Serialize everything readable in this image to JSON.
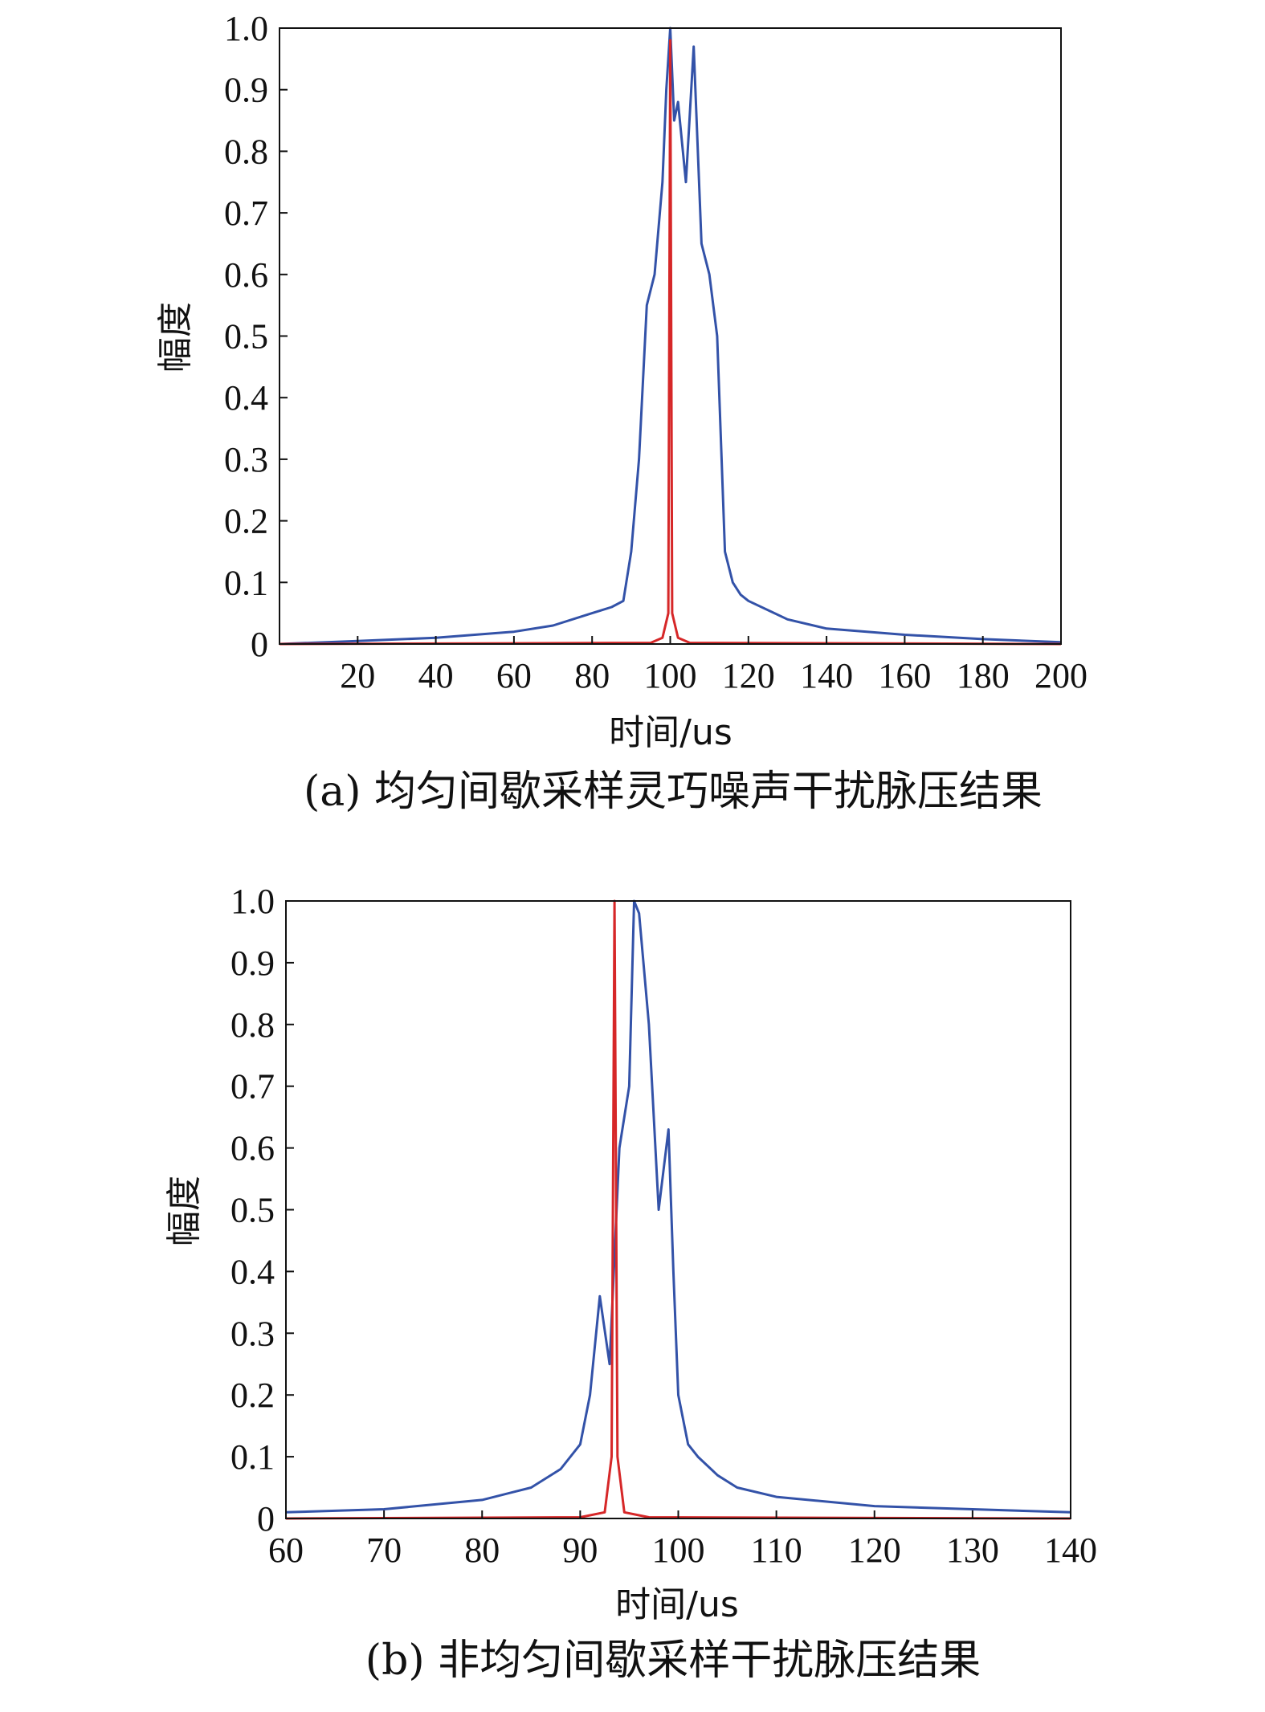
{
  "chart_data": [
    {
      "type": "line",
      "caption": "(a) 均匀间歇采样灵巧噪声干扰脉压结果",
      "xlabel": "时间/us",
      "ylabel": "幅度",
      "xlim": [
        0,
        200
      ],
      "ylim": [
        0,
        1.0
      ],
      "xticks": [
        20,
        40,
        60,
        80,
        100,
        120,
        140,
        160,
        180,
        200
      ],
      "xtick_labels": [
        "20",
        "40",
        "60",
        "80",
        "100",
        "120",
        "140",
        "160",
        "180",
        "200"
      ],
      "yticks": [
        0,
        0.1,
        0.2,
        0.3,
        0.4,
        0.5,
        0.6,
        0.7,
        0.8,
        0.9,
        1.0
      ],
      "ytick_labels": [
        "0",
        "0.1",
        "0.2",
        "0.3",
        "0.4",
        "0.5",
        "0.6",
        "0.7",
        "0.8",
        "0.9",
        "1.0"
      ],
      "grid": false,
      "series": [
        {
          "color": "#3352a8",
          "x": [
            0,
            20,
            40,
            60,
            70,
            80,
            85,
            88,
            90,
            92,
            94,
            96,
            98,
            99,
            100,
            101,
            102,
            104,
            106,
            108,
            110,
            112,
            114,
            116,
            118,
            120,
            130,
            140,
            160,
            180,
            200
          ],
          "y": [
            0.0,
            0.005,
            0.01,
            0.02,
            0.03,
            0.05,
            0.06,
            0.07,
            0.15,
            0.3,
            0.55,
            0.6,
            0.75,
            0.9,
            1.0,
            0.85,
            0.88,
            0.75,
            0.97,
            0.65,
            0.6,
            0.5,
            0.15,
            0.1,
            0.08,
            0.07,
            0.04,
            0.025,
            0.015,
            0.008,
            0.003
          ]
        },
        {
          "color": "#d62728",
          "x": [
            0,
            95,
            98,
            99.5,
            100,
            100.5,
            102,
            105,
            200
          ],
          "y": [
            0.0,
            0.002,
            0.01,
            0.05,
            0.98,
            0.05,
            0.01,
            0.002,
            0.0
          ]
        }
      ]
    },
    {
      "type": "line",
      "caption": "(b) 非均匀间歇采样干扰脉压结果",
      "xlabel": "时间/us",
      "ylabel": "幅度",
      "xlim": [
        60,
        140
      ],
      "ylim": [
        0,
        1.0
      ],
      "xticks": [
        60,
        70,
        80,
        90,
        100,
        110,
        120,
        130,
        140
      ],
      "xtick_labels": [
        "60",
        "70",
        "80",
        "90",
        "100",
        "110",
        "120",
        "130",
        "140"
      ],
      "yticks": [
        0,
        0.1,
        0.2,
        0.3,
        0.4,
        0.5,
        0.6,
        0.7,
        0.8,
        0.9,
        1.0
      ],
      "ytick_labels": [
        "0",
        "0.1",
        "0.2",
        "0.3",
        "0.4",
        "0.5",
        "0.6",
        "0.7",
        "0.8",
        "0.9",
        "1.0"
      ],
      "grid": false,
      "series": [
        {
          "color": "#3352a8",
          "x": [
            60,
            70,
            80,
            85,
            88,
            90,
            91,
            92,
            93,
            94,
            95,
            95.5,
            96,
            97,
            98,
            99,
            99.5,
            100,
            101,
            102,
            104,
            106,
            110,
            120,
            130,
            140
          ],
          "y": [
            0.01,
            0.015,
            0.03,
            0.05,
            0.08,
            0.12,
            0.2,
            0.36,
            0.25,
            0.6,
            0.7,
            1.0,
            0.98,
            0.8,
            0.5,
            0.63,
            0.4,
            0.2,
            0.12,
            0.1,
            0.07,
            0.05,
            0.035,
            0.02,
            0.015,
            0.01
          ]
        },
        {
          "color": "#d62728",
          "x": [
            60,
            90,
            92.5,
            93.2,
            93.5,
            93.8,
            94.5,
            97,
            140
          ],
          "y": [
            0.0,
            0.002,
            0.01,
            0.1,
            1.0,
            0.1,
            0.01,
            0.002,
            0.0
          ]
        }
      ]
    }
  ]
}
